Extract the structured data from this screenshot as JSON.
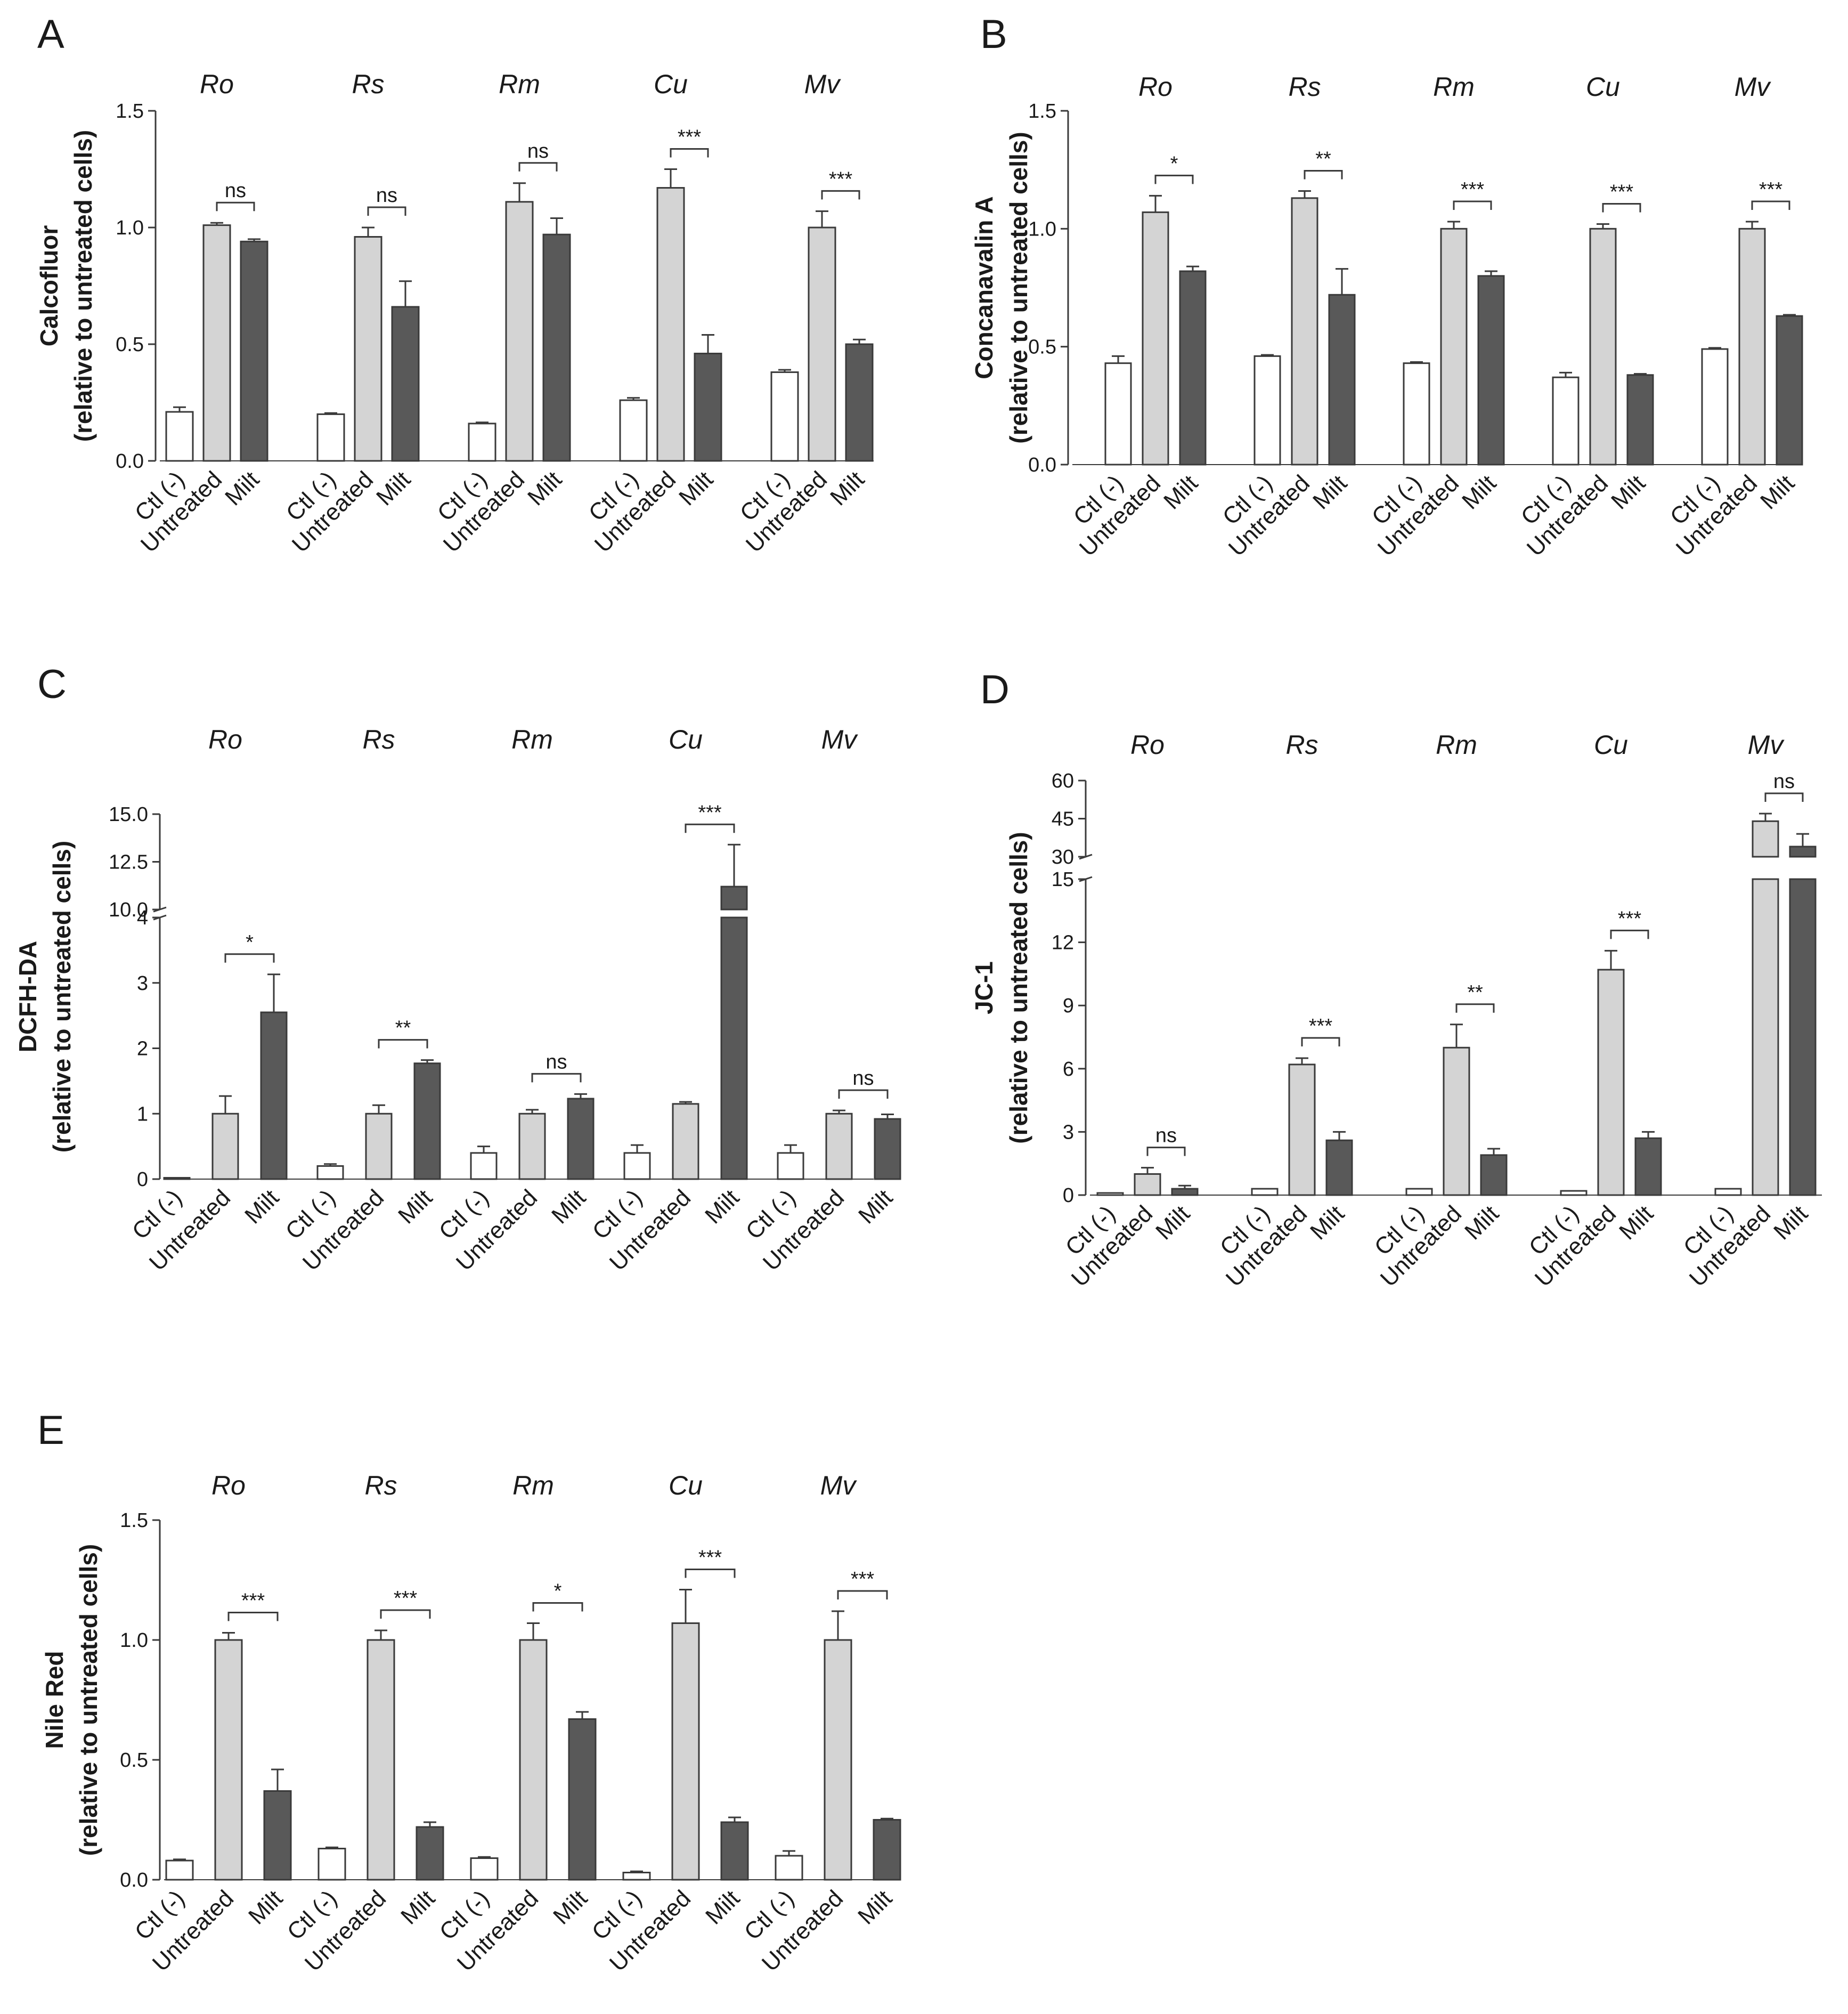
{
  "figure": {
    "groups": [
      "Ro",
      "Rs",
      "Rm",
      "Cu",
      "Mv"
    ],
    "conditions": [
      "Ctl (-)",
      "Untreated",
      "Milt"
    ],
    "colors": {
      "ctl": "#ffffff",
      "untreated": "#d4d4d4",
      "milt": "#595959",
      "stroke": "#3a3a3a",
      "text": "#1a1a1a"
    }
  },
  "chart_data": [
    {
      "panel": "A",
      "type": "bar",
      "ylabel_line1": "Calcofluor",
      "ylabel_line2": "(relative to untreated cells)",
      "ylim": [
        0,
        1.5
      ],
      "yticks": [
        "0.0",
        "0.5",
        "1.0",
        "1.5"
      ],
      "categories": [
        "Ro",
        "Rs",
        "Rm",
        "Cu",
        "Mv"
      ],
      "series": [
        {
          "name": "Ctl (-)",
          "values": [
            0.21,
            0.2,
            0.16,
            0.26,
            0.38
          ],
          "errors": [
            0.02,
            0.005,
            0.005,
            0.01,
            0.01
          ]
        },
        {
          "name": "Untreated",
          "values": [
            1.01,
            0.96,
            1.11,
            1.17,
            1.0
          ],
          "errors": [
            0.01,
            0.04,
            0.08,
            0.08,
            0.07
          ]
        },
        {
          "name": "Milt",
          "values": [
            0.94,
            0.66,
            0.97,
            0.46,
            0.5
          ],
          "errors": [
            0.01,
            0.11,
            0.07,
            0.08,
            0.02
          ]
        }
      ],
      "significance": [
        "ns",
        "ns",
        "ns",
        "***",
        "***"
      ]
    },
    {
      "panel": "B",
      "type": "bar",
      "ylabel_line1": "Concanavalin A",
      "ylabel_line2": "(relative to untreated cells)",
      "ylim": [
        0,
        1.5
      ],
      "yticks": [
        "0.0",
        "0.5",
        "1.0",
        "1.5"
      ],
      "categories": [
        "Ro",
        "Rs",
        "Rm",
        "Cu",
        "Mv"
      ],
      "series": [
        {
          "name": "Ctl (-)",
          "values": [
            0.43,
            0.46,
            0.43,
            0.37,
            0.49
          ],
          "errors": [
            0.03,
            0.005,
            0.005,
            0.02,
            0.005
          ]
        },
        {
          "name": "Untreated",
          "values": [
            1.07,
            1.13,
            1.0,
            1.0,
            1.0
          ],
          "errors": [
            0.07,
            0.03,
            0.03,
            0.02,
            0.03
          ]
        },
        {
          "name": "Milt",
          "values": [
            0.82,
            0.72,
            0.8,
            0.38,
            0.63
          ],
          "errors": [
            0.02,
            0.11,
            0.02,
            0.005,
            0.005
          ]
        }
      ],
      "significance": [
        "*",
        "**",
        "***",
        "***",
        "***"
      ]
    },
    {
      "panel": "C",
      "type": "bar",
      "ylabel_line1": "DCFH-DA",
      "ylabel_line2": "(relative to untreated cells)",
      "axis_break": {
        "lower": [
          0,
          4
        ],
        "upper": [
          10,
          15
        ]
      },
      "yticks_lower": [
        "0",
        "1",
        "2",
        "3",
        "4"
      ],
      "yticks_upper": [
        "10.0",
        "12.5",
        "15.0"
      ],
      "categories": [
        "Ro",
        "Rs",
        "Rm",
        "Cu",
        "Mv"
      ],
      "series": [
        {
          "name": "Ctl (-)",
          "values": [
            0.02,
            0.2,
            0.4,
            0.4,
            0.4
          ],
          "errors": [
            0,
            0.03,
            0.1,
            0.12,
            0.12
          ]
        },
        {
          "name": "Untreated",
          "values": [
            1.0,
            1.0,
            1.0,
            1.15,
            1.0
          ],
          "errors": [
            0.27,
            0.13,
            0.06,
            0.03,
            0.05
          ]
        },
        {
          "name": "Milt",
          "values": [
            2.55,
            1.77,
            1.23,
            11.2,
            0.92
          ],
          "errors": [
            0.58,
            0.05,
            0.07,
            2.2,
            0.07
          ]
        }
      ],
      "significance": [
        "*",
        "**",
        "ns",
        "***",
        "ns"
      ]
    },
    {
      "panel": "D",
      "type": "bar",
      "ylabel_line1": "JC-1",
      "ylabel_line2": "(relative to untreated cells)",
      "axis_break": {
        "lower": [
          0,
          15
        ],
        "upper": [
          30,
          60
        ]
      },
      "yticks_lower": [
        "0",
        "3",
        "6",
        "9",
        "12",
        "15"
      ],
      "yticks_upper": [
        "30",
        "45",
        "60"
      ],
      "categories": [
        "Ro",
        "Rs",
        "Rm",
        "Cu",
        "Mv"
      ],
      "series": [
        {
          "name": "Ctl (-)",
          "values": [
            0.1,
            0.3,
            0.3,
            0.2,
            0.3
          ],
          "errors": [
            0,
            0,
            0,
            0,
            0
          ]
        },
        {
          "name": "Untreated",
          "values": [
            1.0,
            6.2,
            7.0,
            10.7,
            44.0
          ],
          "errors": [
            0.3,
            0.3,
            1.1,
            0.9,
            3.0
          ]
        },
        {
          "name": "Milt",
          "values": [
            0.3,
            2.6,
            1.9,
            2.7,
            34.0
          ],
          "errors": [
            0.15,
            0.4,
            0.3,
            0.3,
            5.0
          ]
        }
      ],
      "significance": [
        "ns",
        "***",
        "**",
        "***",
        "ns"
      ]
    },
    {
      "panel": "E",
      "type": "bar",
      "ylabel_line1": "Nile Red",
      "ylabel_line2": "(relative to untreated cells)",
      "ylim": [
        0,
        1.5
      ],
      "yticks": [
        "0.0",
        "0.5",
        "1.0",
        "1.5"
      ],
      "categories": [
        "Ro",
        "Rs",
        "Rm",
        "Cu",
        "Mv"
      ],
      "series": [
        {
          "name": "Ctl (-)",
          "values": [
            0.08,
            0.13,
            0.09,
            0.03,
            0.1
          ],
          "errors": [
            0.005,
            0.005,
            0.005,
            0.005,
            0.02
          ]
        },
        {
          "name": "Untreated",
          "values": [
            1.0,
            1.0,
            1.0,
            1.07,
            1.0
          ],
          "errors": [
            0.03,
            0.04,
            0.07,
            0.14,
            0.12
          ]
        },
        {
          "name": "Milt",
          "values": [
            0.37,
            0.22,
            0.67,
            0.24,
            0.25
          ],
          "errors": [
            0.09,
            0.02,
            0.03,
            0.02,
            0.005
          ]
        }
      ],
      "significance": [
        "***",
        "***",
        "*",
        "***",
        "***"
      ]
    }
  ]
}
